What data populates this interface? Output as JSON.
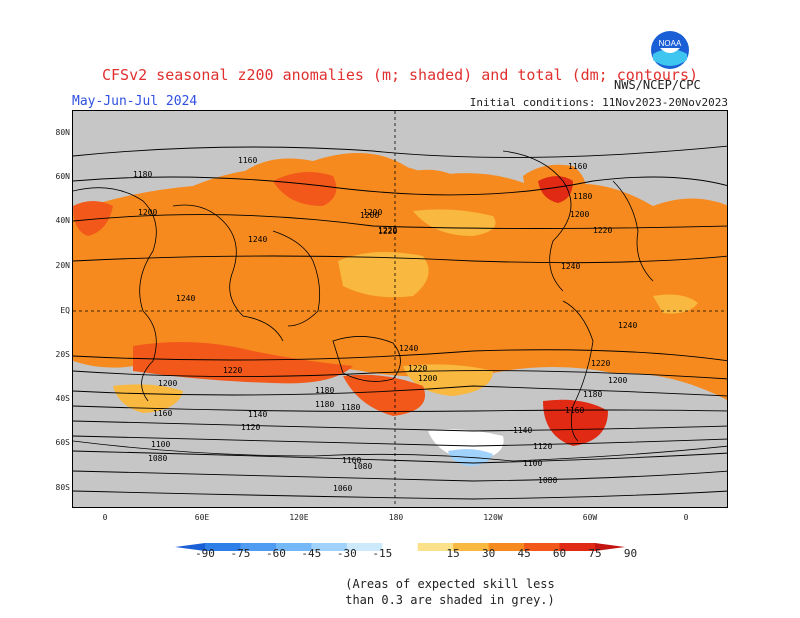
{
  "title": "CFSv2 seasonal z200 anomalies (m; shaded) and total (dm; contours)",
  "subtitle": "May-Jun-Jul 2024",
  "initial_conditions": "Initial conditions: 11Nov2023-20Nov2023",
  "agency": "NWS/NCEP/CPC",
  "logo_text": "NOAA",
  "lat_labels": [
    "80N",
    "60N",
    "40N",
    "20N",
    "EQ",
    "20S",
    "40S",
    "60S",
    "80S"
  ],
  "lon_labels": [
    "0",
    "60E",
    "120E",
    "180",
    "120W",
    "60W",
    "0"
  ],
  "colorbar": {
    "labels": [
      "-90",
      "-75",
      "-60",
      "-45",
      "-30",
      "-15",
      "15",
      "30",
      "45",
      "60",
      "75",
      "90"
    ],
    "colors": [
      "#1a5fd6",
      "#2e7fe8",
      "#4f9cf2",
      "#74b8f8",
      "#a0d2fb",
      "#cdeafd",
      "#ffffff",
      "#fbe28a",
      "#f9b840",
      "#f68a1f",
      "#f2581a",
      "#e02a14",
      "#c21410"
    ]
  },
  "contour_labels": [
    "1180",
    "1160",
    "1160",
    "1180",
    "1200",
    "1220",
    "1240",
    "1200",
    "1220",
    "1240",
    "1240",
    "1240",
    "1220",
    "1240",
    "1220",
    "1220",
    "1200",
    "1200",
    "1200",
    "1180",
    "1180",
    "1160",
    "1160",
    "1140",
    "1140",
    "1120",
    "1120",
    "1100",
    "1100",
    "1080",
    "1080",
    "1060",
    "1080",
    "1180",
    "1180",
    "1200",
    "1200",
    "1220",
    "1160"
  ],
  "note": [
    "(Areas of expected skill less",
    "than 0.3 are shaded in grey.)"
  ],
  "colors": {
    "title": "#e03030",
    "subtitle": "#3050e0",
    "grey_low_skill": "#c6c6c6",
    "main_anomaly": "#f68a1f"
  }
}
